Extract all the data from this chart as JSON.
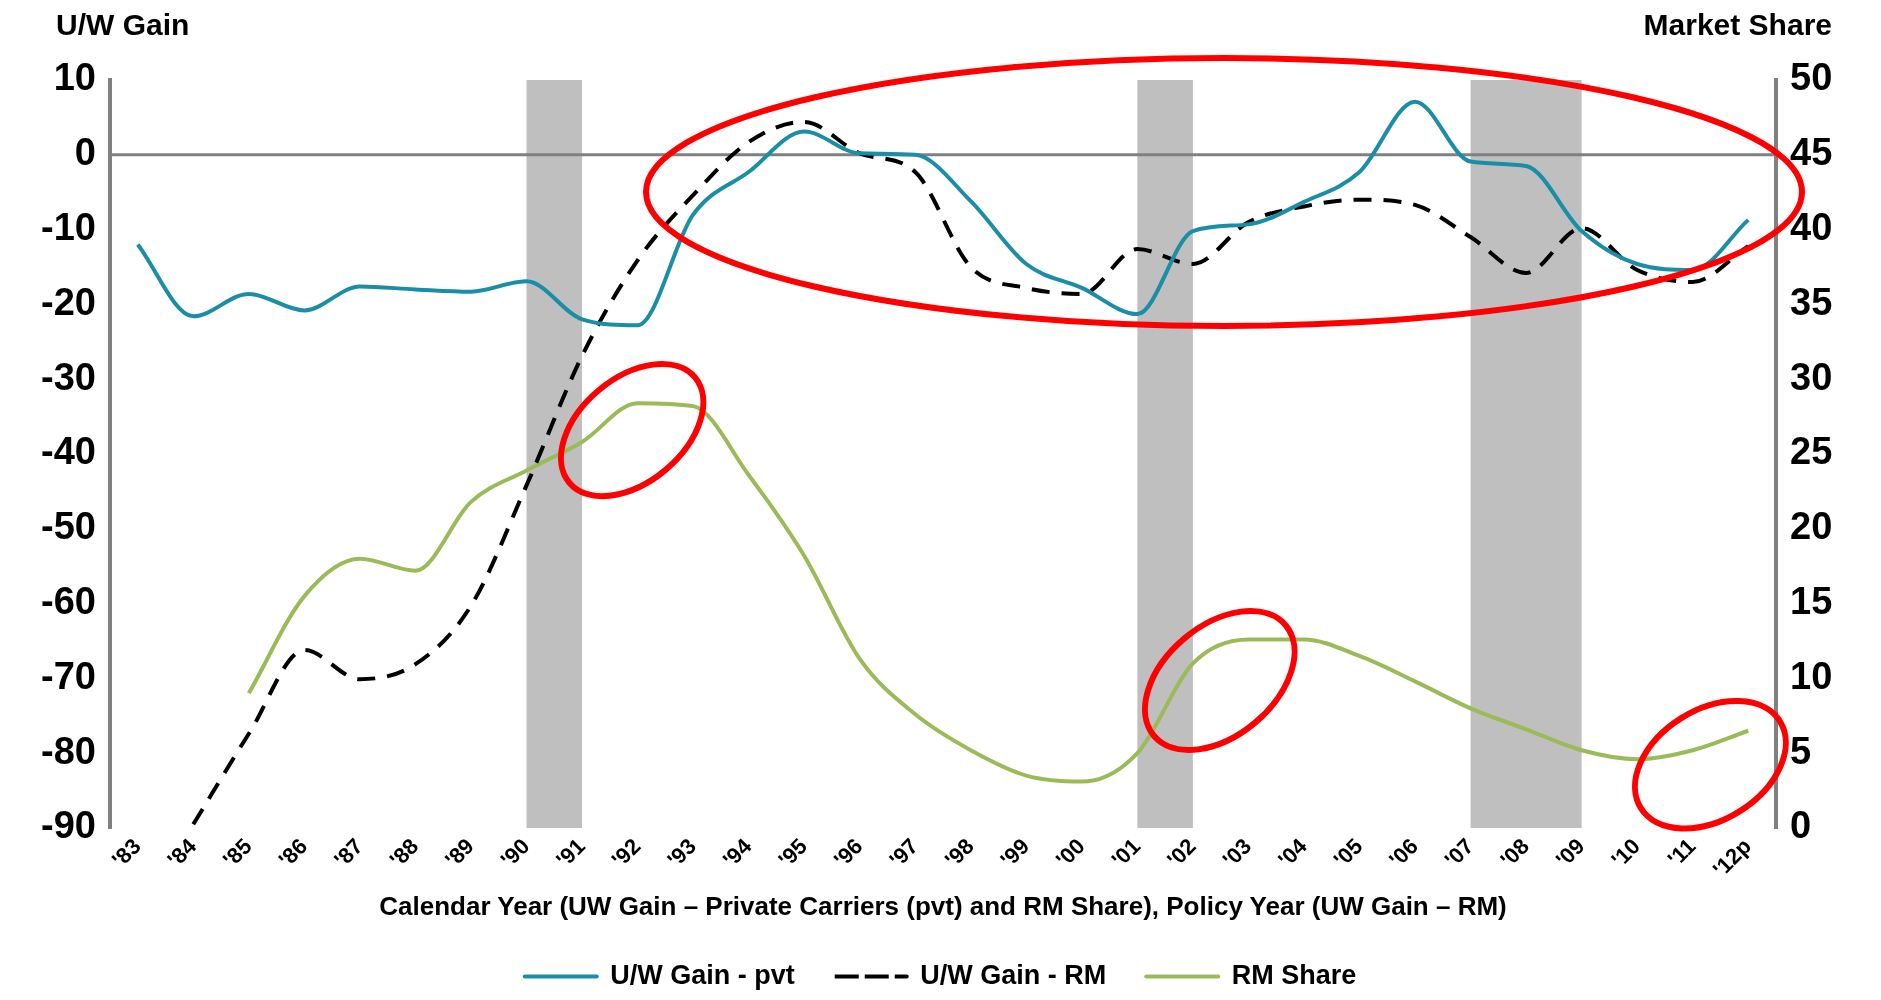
{
  "chart_data": {
    "type": "line",
    "ylabel": "U/W Gain",
    "y2label": "Market Share",
    "xlabel": "Calendar Year (UW Gain – Private Carriers (pvt) and RM Share), Policy Year (UW Gain – RM)",
    "categories": [
      "'83",
      "'84",
      "'85",
      "'86",
      "'87",
      "'88",
      "'89",
      "'90",
      "'91",
      "'92",
      "'93",
      "'94",
      "'95",
      "'96",
      "'97",
      "'98",
      "'99",
      "'00",
      "'01",
      "'02",
      "'03",
      "'04",
      "'05",
      "'06",
      "'07",
      "'08",
      "'09",
      "'10",
      "'11",
      "'12p"
    ],
    "series": [
      {
        "name": "U/W Gain - pvt",
        "color": "#1b8ea7",
        "line_style": "solid",
        "values": [
          -12,
          -21.6,
          -18.6,
          -20.8,
          -17.6,
          -18,
          -18.3,
          -16.9,
          -22,
          -22.8,
          -8,
          -2.3,
          3.1,
          0.2,
          0,
          -6.2,
          -14.6,
          -17.8,
          -21.3,
          -10.2,
          -9.3,
          -6.3,
          -2.3,
          7.1,
          -0.9,
          -1.5,
          -10.2,
          -14.6,
          -15.4,
          -8.7
        ]
      },
      {
        "name": "U/W Gain - RM",
        "color": "#000000",
        "line_style": "dashed",
        "values": [
          null,
          -89.5,
          -77.4,
          -66.2,
          -70.1,
          -68.1,
          -60.3,
          -44.2,
          -26.9,
          -14.1,
          -5.4,
          1.7,
          4.4,
          0.2,
          -2.3,
          -15,
          -17.8,
          -18.6,
          -12.6,
          -14.6,
          -9,
          -6.9,
          -6,
          -6.7,
          -11,
          -15.8,
          -9.8,
          -15.4,
          -17,
          -12.2
        ]
      },
      {
        "name": "RM Share",
        "color": "#9bbb59",
        "line_style": "solid",
        "axis": "y2",
        "values": [
          null,
          null,
          9,
          15.5,
          18,
          17.2,
          21.8,
          23.9,
          25.8,
          28.4,
          28.2,
          23.6,
          18.2,
          11.3,
          7.6,
          5.2,
          3.5,
          3.1,
          5,
          11,
          12.6,
          12.6,
          11.5,
          9.8,
          8,
          6.6,
          5.2,
          4.6,
          5.2,
          6.5
        ]
      }
    ],
    "ylim": [
      -90,
      10
    ],
    "yticks": [
      -90,
      -80,
      -70,
      -60,
      -50,
      -40,
      -30,
      -20,
      -10,
      0,
      10
    ],
    "y2lim": [
      0,
      50
    ],
    "y2ticks": [
      0,
      5,
      10,
      15,
      20,
      25,
      30,
      35,
      40,
      45,
      50
    ],
    "ref_lines": [
      {
        "axis": "y",
        "value": 0,
        "color": "#808080"
      }
    ],
    "bands": [
      {
        "axis": "x",
        "from": "'90",
        "to": "'91",
        "color": "#bfbfbf"
      },
      {
        "axis": "x",
        "from": "'01",
        "to": "'02",
        "color": "#bfbfbf"
      },
      {
        "axis": "x",
        "from": "'07",
        "to": "'09",
        "color": "#bfbfbf"
      }
    ],
    "grid": false,
    "legend": "bottom",
    "marker": "none"
  }
}
